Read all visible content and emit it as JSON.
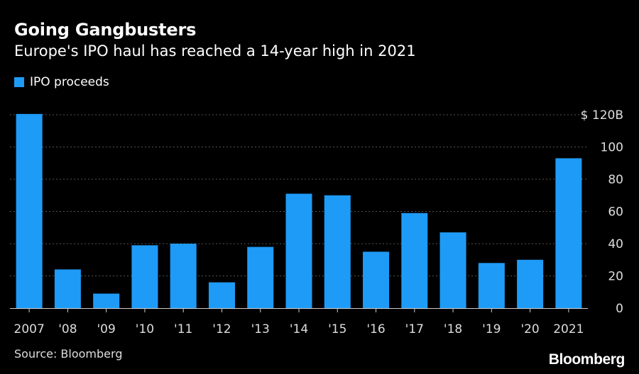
{
  "title": "Going Gangbusters",
  "subtitle": "Europe's IPO haul has reached a 14-year high in 2021",
  "source": "Source: Bloomberg",
  "brand": "Bloomberg",
  "colors": {
    "bar": "#1e9bf7",
    "grid": "#555555",
    "axis": "#cccccc",
    "text": "#dddddd"
  },
  "chart_data": {
    "type": "bar",
    "categories": [
      "2007",
      "'08",
      "'09",
      "'10",
      "'11",
      "'12",
      "'13",
      "'14",
      "'15",
      "'16",
      "'17",
      "'18",
      "'19",
      "'20",
      "2021"
    ],
    "series": [
      {
        "name": "IPO proceeds",
        "values": [
          124,
          24,
          9,
          39,
          40,
          16,
          38,
          71,
          70,
          35,
          59,
          47,
          28,
          30,
          93
        ]
      }
    ],
    "ylim": [
      0,
      120
    ],
    "yticks": [
      0,
      20,
      40,
      60,
      80,
      100,
      120
    ],
    "ytick_labels": [
      "0",
      "20",
      "40",
      "60",
      "80",
      "100",
      "$ 120B"
    ],
    "grid": true,
    "legend": "top-left"
  }
}
